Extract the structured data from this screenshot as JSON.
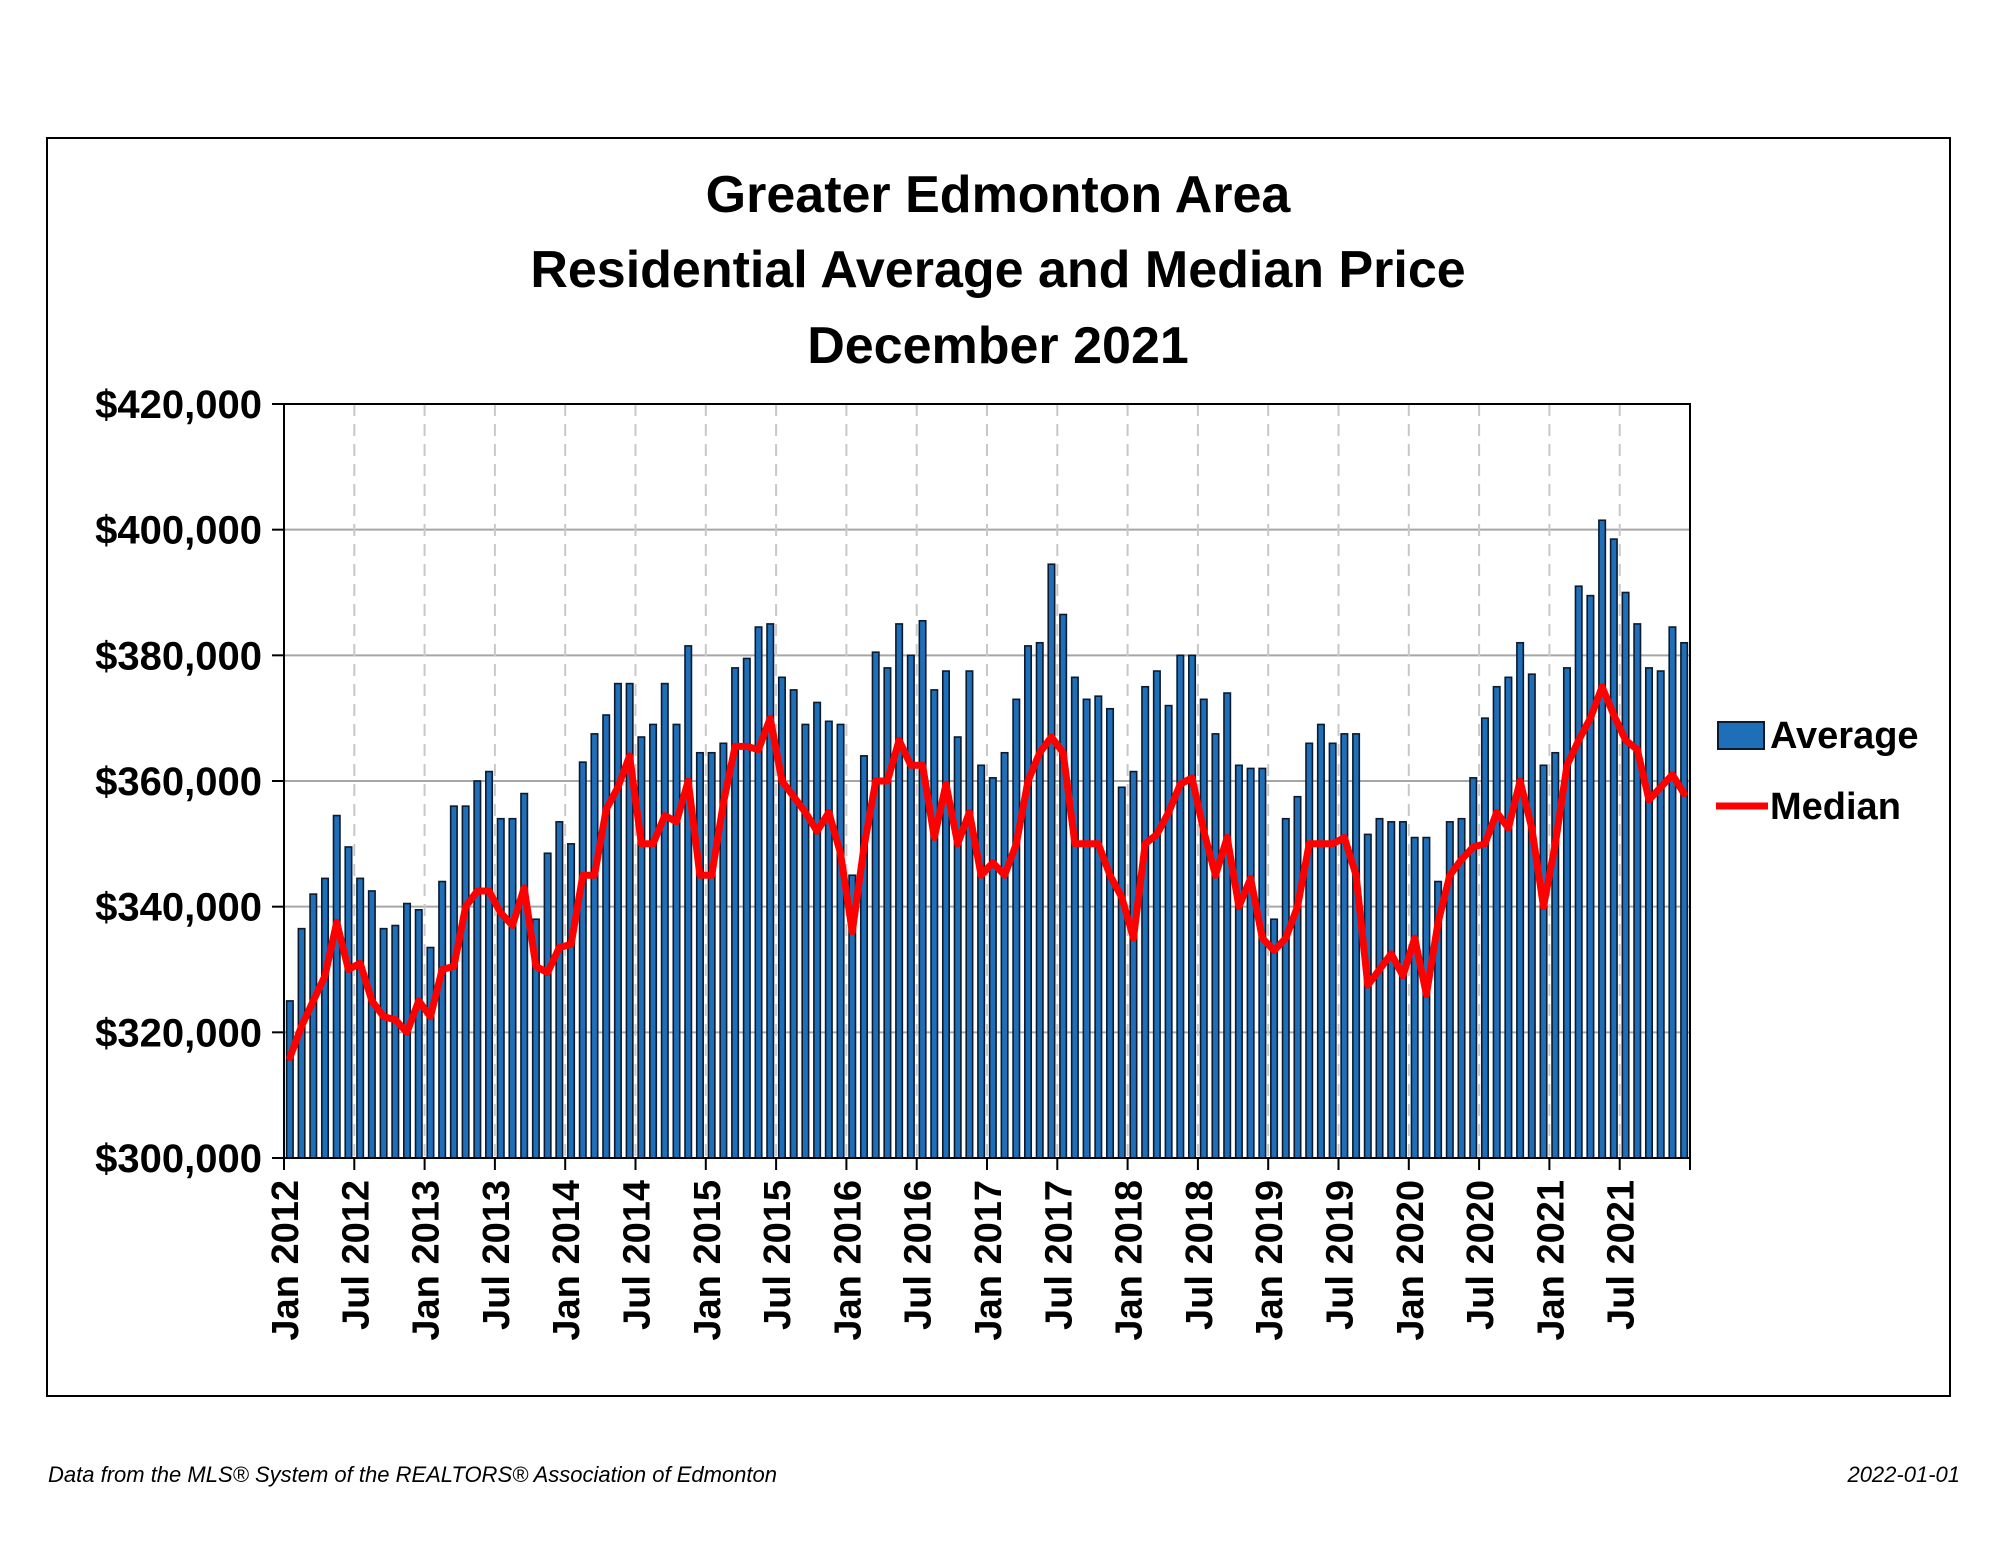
{
  "footer": {
    "source": "Data from the MLS® System of the REALTORS® Association of Edmonton",
    "date": "2022-01-01"
  },
  "colors": {
    "bar_fill": "#1f6fb8",
    "bar_stroke": "#0b1a2e",
    "median_line": "#ff0000",
    "grid": "#a6a6a6",
    "vgrid": "#c8c8c8"
  },
  "chart_data": {
    "type": "bar",
    "title": [
      "Greater Edmonton Area",
      "Residential Average and Median Price",
      "December 2021"
    ],
    "xlabel": "",
    "ylabel": "",
    "ylim": [
      300000,
      420000
    ],
    "yticks": [
      300000,
      320000,
      340000,
      360000,
      380000,
      400000,
      420000
    ],
    "ytick_labels": [
      "$300,000",
      "$320,000",
      "$340,000",
      "$360,000",
      "$380,000",
      "$400,000",
      "$420,000"
    ],
    "xtick_labels": [
      "Jan 2012",
      "Jul 2012",
      "Jan 2013",
      "Jul 2013",
      "Jan 2014",
      "Jul 2014",
      "Jan 2015",
      "Jul 2015",
      "Jan 2016",
      "Jul 2016",
      "Jan 2017",
      "Jul 2017",
      "Jan 2018",
      "Jul 2018",
      "Jan 2019",
      "Jul 2019",
      "Jan 2020",
      "Jul 2020",
      "Jan 2021",
      "Jul 2021"
    ],
    "xtick_every": 6,
    "start_month": "Jan 2012",
    "end_month": "Dec 2021",
    "grid": true,
    "legend_position": "right",
    "series": [
      {
        "name": "Average",
        "type": "bar",
        "values": [
          325000,
          336500,
          342000,
          344500,
          354500,
          349500,
          344500,
          342500,
          336500,
          337000,
          340500,
          339500,
          333500,
          344000,
          356000,
          356000,
          360000,
          361500,
          354000,
          354000,
          358000,
          338000,
          348500,
          353500,
          350000,
          363000,
          367500,
          370500,
          375500,
          375500,
          367000,
          369000,
          375500,
          369000,
          381500,
          364500,
          364500,
          366000,
          378000,
          379500,
          384500,
          385000,
          376500,
          374500,
          369000,
          372500,
          369500,
          369000,
          345000,
          364000,
          380500,
          378000,
          385000,
          380000,
          385500,
          374500,
          377500,
          367000,
          377500,
          362500,
          360500,
          364500,
          373000,
          381500,
          382000,
          394500,
          386500,
          376500,
          373000,
          373500,
          371500,
          359000,
          361500,
          375000,
          377500,
          372000,
          380000,
          380000,
          373000,
          367500,
          374000,
          362500,
          362000,
          362000,
          338000,
          354000,
          357500,
          366000,
          369000,
          366000,
          367500,
          367500,
          351500,
          354000,
          353500,
          353500,
          351000,
          351000,
          344000,
          353500,
          354000,
          360500,
          370000,
          375000,
          376500,
          382000,
          377000,
          362500,
          364500,
          378000,
          391000,
          389500,
          401500,
          398500,
          390000,
          385000,
          378000,
          377500,
          384500,
          382000
        ]
      },
      {
        "name": "Median",
        "type": "line",
        "values": [
          316000,
          321000,
          325000,
          329000,
          337500,
          330000,
          331000,
          325000,
          322500,
          322000,
          320000,
          325000,
          322500,
          330000,
          330500,
          340000,
          342500,
          342500,
          339000,
          337000,
          343000,
          330500,
          329500,
          333500,
          334000,
          345000,
          345000,
          355500,
          359000,
          364000,
          350000,
          350000,
          354500,
          353500,
          360000,
          345000,
          345000,
          356500,
          365500,
          365500,
          365000,
          370000,
          360000,
          357500,
          355000,
          352000,
          355000,
          348500,
          336000,
          349500,
          360000,
          360000,
          366500,
          362500,
          362500,
          351000,
          359500,
          350000,
          355000,
          345000,
          347000,
          345000,
          350000,
          360000,
          364500,
          367000,
          364500,
          350000,
          350000,
          350000,
          345000,
          341500,
          335000,
          350000,
          351500,
          355000,
          359500,
          360500,
          352000,
          345000,
          351000,
          340000,
          344500,
          335000,
          333000,
          335000,
          340000,
          350000,
          350000,
          350000,
          351000,
          345000,
          327500,
          330000,
          332500,
          329000,
          335000,
          326000,
          337500,
          345000,
          347500,
          349500,
          350000,
          355000,
          352500,
          360000,
          352500,
          340000,
          350000,
          362500,
          366500,
          370000,
          375000,
          370500,
          366500,
          365000,
          357000,
          359000,
          361000,
          358000
        ]
      }
    ]
  }
}
